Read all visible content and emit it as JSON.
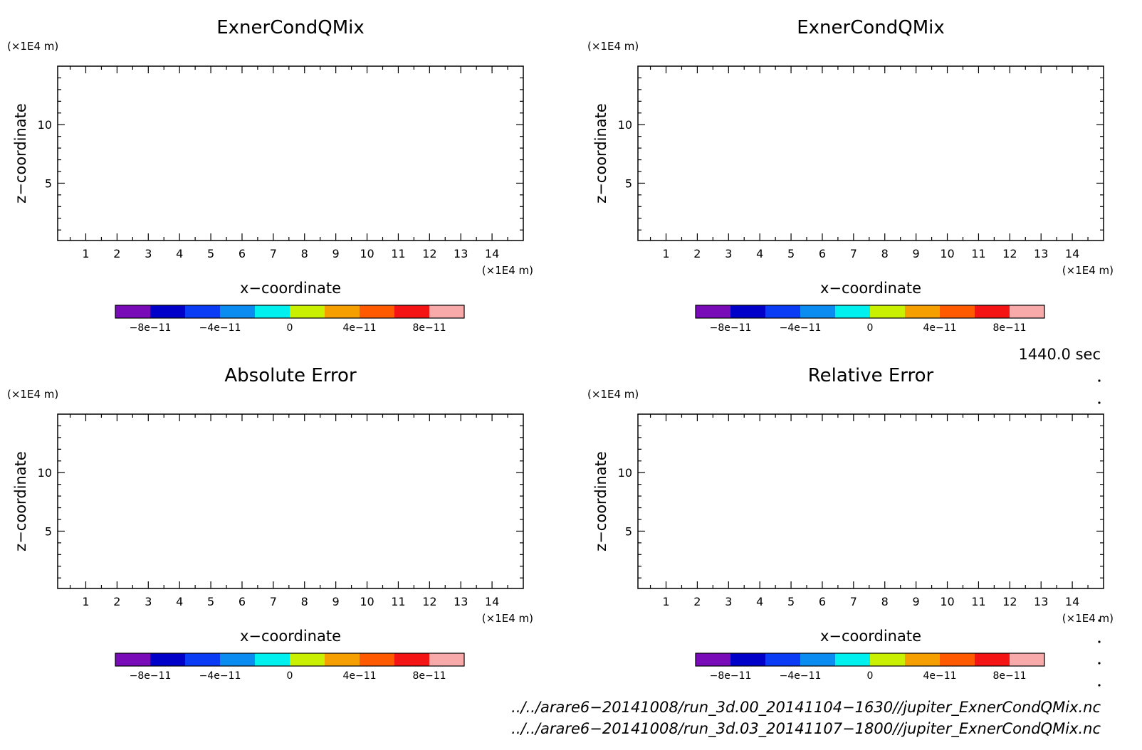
{
  "chart_data": [
    {
      "type": "heatmap",
      "title": "ExnerCondQMix",
      "xlabel": "x−coordinate",
      "ylabel": "z−coordinate",
      "x_unit": "(×1E4 m)",
      "y_unit": "(×1E4 m)",
      "xticks": [
        "1",
        "2",
        "3",
        "4",
        "5",
        "6",
        "7",
        "8",
        "9",
        "10",
        "11",
        "12",
        "13",
        "14"
      ],
      "yticks": [
        "5",
        "10"
      ],
      "xlim": [
        0.1,
        15.0
      ],
      "ylim": [
        0.1,
        15.0
      ],
      "values": [],
      "colorbar": {
        "colors": [
          "#7a0bb8",
          "#0000c8",
          "#0a3cf5",
          "#0a8cf0",
          "#00f0f0",
          "#c8f000",
          "#f5a000",
          "#ff5a00",
          "#f51414",
          "#f8aaaa"
        ],
        "ticks": [
          "−8e−11",
          "−4e−11",
          "0",
          "4e−11",
          "8e−11"
        ]
      }
    },
    {
      "type": "heatmap",
      "title": "ExnerCondQMix",
      "xlabel": "x−coordinate",
      "ylabel": "z−coordinate",
      "x_unit": "(×1E4 m)",
      "y_unit": "(×1E4 m)",
      "xticks": [
        "1",
        "2",
        "3",
        "4",
        "5",
        "6",
        "7",
        "8",
        "9",
        "10",
        "11",
        "12",
        "13",
        "14"
      ],
      "yticks": [
        "5",
        "10"
      ],
      "xlim": [
        0.1,
        15.0
      ],
      "ylim": [
        0.1,
        15.0
      ],
      "values": [],
      "colorbar": {
        "colors": [
          "#7a0bb8",
          "#0000c8",
          "#0a3cf5",
          "#0a8cf0",
          "#00f0f0",
          "#c8f000",
          "#f5a000",
          "#ff5a00",
          "#f51414",
          "#f8aaaa"
        ],
        "ticks": [
          "−8e−11",
          "−4e−11",
          "0",
          "4e−11",
          "8e−11"
        ]
      }
    },
    {
      "type": "heatmap",
      "title": "Absolute Error",
      "xlabel": "x−coordinate",
      "ylabel": "z−coordinate",
      "x_unit": "(×1E4 m)",
      "y_unit": "(×1E4 m)",
      "xticks": [
        "1",
        "2",
        "3",
        "4",
        "5",
        "6",
        "7",
        "8",
        "9",
        "10",
        "11",
        "12",
        "13",
        "14"
      ],
      "yticks": [
        "5",
        "10"
      ],
      "xlim": [
        0.1,
        15.0
      ],
      "ylim": [
        0.1,
        15.0
      ],
      "values": [],
      "colorbar": {
        "colors": [
          "#7a0bb8",
          "#0000c8",
          "#0a3cf5",
          "#0a8cf0",
          "#00f0f0",
          "#c8f000",
          "#f5a000",
          "#ff5a00",
          "#f51414",
          "#f8aaaa"
        ],
        "ticks": [
          "−8e−11",
          "−4e−11",
          "0",
          "4e−11",
          "8e−11"
        ]
      }
    },
    {
      "type": "heatmap",
      "title": "Relative Error",
      "xlabel": "x−coordinate",
      "ylabel": "z−coordinate",
      "x_unit": "(×1E4 m)",
      "y_unit": "(×1E4 m)",
      "xticks": [
        "1",
        "2",
        "3",
        "4",
        "5",
        "6",
        "7",
        "8",
        "9",
        "10",
        "11",
        "12",
        "13",
        "14"
      ],
      "yticks": [
        "5",
        "10"
      ],
      "xlim": [
        0.1,
        15.0
      ],
      "ylim": [
        0.1,
        15.0
      ],
      "values": [],
      "colorbar": {
        "colors": [
          "#7a0bb8",
          "#0000c8",
          "#0a3cf5",
          "#0a8cf0",
          "#00f0f0",
          "#c8f000",
          "#f5a000",
          "#ff5a00",
          "#f51414",
          "#f8aaaa"
        ],
        "ticks": [
          "−8e−11",
          "−4e−11",
          "0",
          "4e−11",
          "8e−11"
        ]
      }
    }
  ],
  "timestamp": "1440.0 sec",
  "footer": {
    "file1": "../../arare6−20141008/run_3d.00_20141104−1630//jupiter_ExnerCondQMix.nc",
    "file2": "../../arare6−20141008/run_3d.03_20141107−1800//jupiter_ExnerCondQMix.nc"
  }
}
